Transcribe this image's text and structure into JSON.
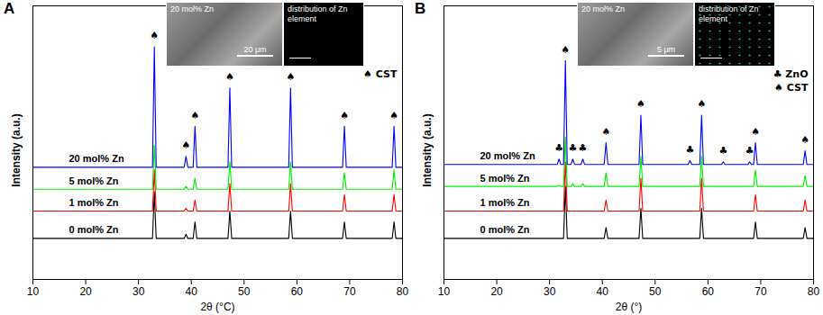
{
  "chart_data": [
    {
      "type": "line",
      "panel": "A",
      "x_label": "2θ (°C)",
      "y_label": "Intensity (a.u.)",
      "xlim": [
        10,
        80
      ],
      "xticks": [
        10,
        20,
        30,
        40,
        50,
        60,
        70,
        80
      ],
      "ylim": [
        0,
        100
      ],
      "yticks": [],
      "tick_labels": "x",
      "grid": false,
      "legend": "upper right",
      "x": [
        10,
        32.65,
        33,
        33.35,
        38.65,
        39,
        39.35,
        40.35,
        40.7,
        41.05,
        46.95,
        47.3,
        47.65,
        58.45,
        58.8,
        59.15,
        68.65,
        69,
        69.35,
        78.05,
        78.4,
        78.75,
        80
      ],
      "series": [
        {
          "name": "0 mol% Zn",
          "color": "#000000",
          "values": [
            15,
            15,
            32,
            15,
            15,
            16.5,
            15,
            15,
            21,
            15,
            15,
            25,
            15,
            15,
            25,
            15,
            15,
            21,
            15,
            15,
            21,
            15,
            15
          ]
        },
        {
          "name": "1 mol% Zn",
          "color": "#ff0000",
          "values": [
            25,
            25,
            40,
            25,
            25,
            26,
            25,
            25,
            29,
            25,
            25,
            35,
            25,
            25,
            35,
            25,
            25,
            31,
            25,
            25,
            31,
            25,
            25
          ]
        },
        {
          "name": "5 mol% Zn",
          "color": "#00ee00",
          "values": [
            33,
            33,
            49,
            33,
            33,
            34,
            33,
            33,
            37,
            33,
            33,
            43,
            33,
            33,
            43,
            33,
            33,
            39,
            33,
            33,
            40,
            33,
            33
          ]
        },
        {
          "name": "20 mol% Zn",
          "color": "#0000ff",
          "values": [
            41,
            41,
            85,
            41,
            41,
            45,
            41,
            41,
            56,
            41,
            41,
            70,
            41,
            41,
            70,
            41,
            41,
            56,
            41,
            41,
            56,
            41,
            41
          ]
        }
      ],
      "phases": [
        {
          "symbol": "♠",
          "name": "CST"
        }
      ],
      "annotations": [
        {
          "x": 33,
          "y": 89,
          "text": "♠"
        },
        {
          "x": 39,
          "y": 49,
          "text": "♠"
        },
        {
          "x": 40.7,
          "y": 60,
          "text": "♠"
        },
        {
          "x": 47.3,
          "y": 74,
          "text": "♠"
        },
        {
          "x": 58.8,
          "y": 74,
          "text": "♠"
        },
        {
          "x": 69,
          "y": 60,
          "text": "♠"
        },
        {
          "x": 78.4,
          "y": 60,
          "text": "♠"
        }
      ],
      "inset": {
        "title": "20 mol% Zn",
        "scale_bar": "20 μm",
        "map_title": "distribution of Zn element"
      }
    },
    {
      "type": "line",
      "panel": "B",
      "x_label": "2θ (°)",
      "y_label": "Intensity (a.u.)",
      "xlim": [
        10,
        80
      ],
      "xticks": [
        10,
        20,
        30,
        40,
        50,
        60,
        70,
        80
      ],
      "ylim": [
        0,
        100
      ],
      "yticks": [],
      "tick_labels": "x",
      "grid": false,
      "legend": "upper right",
      "x": [
        10,
        31.45,
        31.8,
        32.15,
        32.65,
        33,
        33.35,
        34.05,
        34.4,
        34.75,
        35.95,
        36.3,
        36.65,
        40.35,
        40.7,
        41.05,
        46.95,
        47.3,
        47.65,
        56.25,
        56.6,
        56.95,
        58.45,
        58.8,
        59.15,
        62.55,
        62.9,
        63.25,
        67.55,
        67.9,
        68.25,
        68.65,
        69,
        69.35,
        78.05,
        78.4,
        78.75,
        80
      ],
      "series": [
        {
          "name": "0 mol% Zn",
          "color": "#000000",
          "values": [
            15,
            15,
            15,
            15,
            15,
            34,
            15,
            15,
            15,
            15,
            15,
            15,
            15,
            15,
            19,
            15,
            15,
            26,
            15,
            15,
            15,
            15,
            15,
            26,
            15,
            15,
            15,
            15,
            15,
            15,
            15,
            15,
            21,
            15,
            15,
            19,
            15,
            15
          ]
        },
        {
          "name": "1 mol% Zn",
          "color": "#ff0000",
          "values": [
            25,
            25,
            25,
            25,
            25,
            43,
            25,
            25,
            25,
            25,
            25,
            25,
            25,
            25,
            29,
            25,
            25,
            37,
            25,
            25,
            25,
            25,
            25,
            37,
            25,
            25,
            25,
            25,
            25,
            25,
            25,
            25,
            31,
            25,
            25,
            29,
            25,
            25
          ]
        },
        {
          "name": "5 mol% Zn",
          "color": "#00ee00",
          "values": [
            34,
            34,
            34.5,
            34,
            34,
            52,
            34,
            34,
            35,
            34,
            34,
            35,
            34,
            34,
            39,
            34,
            34,
            45,
            34,
            34,
            34,
            34,
            34,
            45,
            34,
            34,
            34,
            34,
            34,
            34,
            34,
            34,
            40,
            34,
            34,
            38,
            34,
            34
          ]
        },
        {
          "name": "20 mol% Zn",
          "color": "#0000ff",
          "values": [
            42,
            42,
            44,
            42,
            42,
            80,
            42,
            42,
            44,
            42,
            42,
            44,
            42,
            42,
            50,
            42,
            42,
            60,
            42,
            42,
            43.5,
            42,
            42,
            60,
            42,
            42,
            43,
            42,
            42,
            43,
            42,
            42,
            50,
            42,
            42,
            47,
            42,
            42
          ]
        }
      ],
      "phases": [
        {
          "symbol": "♣",
          "name": "ZnO"
        },
        {
          "symbol": "♠",
          "name": "CST"
        }
      ],
      "annotations": [
        {
          "x": 31.8,
          "y": 48,
          "text": "♣"
        },
        {
          "x": 34.4,
          "y": 48,
          "text": "♣"
        },
        {
          "x": 36.3,
          "y": 48,
          "text": "♣"
        },
        {
          "x": 56.6,
          "y": 47.5,
          "text": "♣"
        },
        {
          "x": 62.9,
          "y": 47,
          "text": "♣"
        },
        {
          "x": 67.9,
          "y": 47,
          "text": "♣"
        },
        {
          "x": 33,
          "y": 84,
          "text": "♠"
        },
        {
          "x": 40.7,
          "y": 54,
          "text": "♠"
        },
        {
          "x": 47.3,
          "y": 64,
          "text": "♠"
        },
        {
          "x": 58.8,
          "y": 64,
          "text": "♠"
        },
        {
          "x": 69,
          "y": 54,
          "text": "♠"
        },
        {
          "x": 78.4,
          "y": 51,
          "text": "♠"
        }
      ],
      "inset": {
        "title": "20 mol% Zn",
        "scale_bar": "5 μm",
        "map_title": "distribution of Zn element"
      }
    }
  ]
}
